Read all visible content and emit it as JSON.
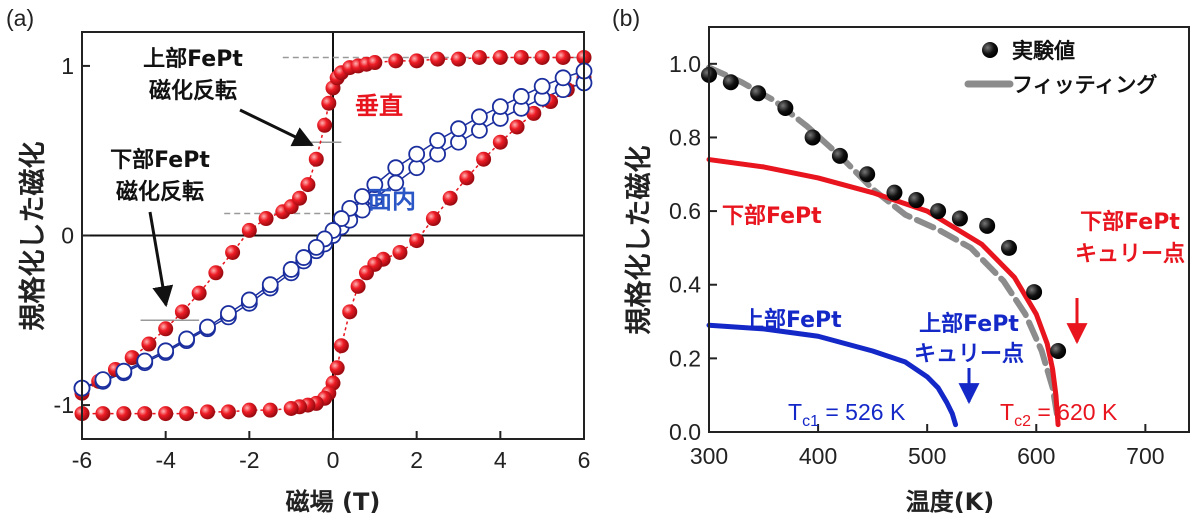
{
  "panels": {
    "a": {
      "panel_label": "(a)",
      "ylabel": "規格化した磁化",
      "xlabel": "磁場 (T)",
      "xticks": [
        "-6",
        "-4",
        "-2",
        "0",
        "2",
        "4",
        "6"
      ],
      "yticks": [
        "-1",
        "0",
        "1"
      ],
      "annotations": {
        "upper_line1": "上部FePt",
        "upper_line2": "磁化反転",
        "lower_line1": "下部FePt",
        "lower_line2": "磁化反転",
        "perp": "垂直",
        "inplane": "面内"
      }
    },
    "b": {
      "panel_label": "(b)",
      "ylabel": "規格化した磁化",
      "xlabel": "温度(K)",
      "xticks": [
        "300",
        "400",
        "500",
        "600",
        "700"
      ],
      "yticks": [
        "0.0",
        "0.2",
        "0.4",
        "0.6",
        "0.8",
        "1.0"
      ],
      "legend": {
        "experiment": "実験値",
        "fit": "フィッティング"
      },
      "annotations": {
        "lower_fept": "下部FePt",
        "upper_fept": "上部FePt",
        "lower_curie_1": "下部FePt",
        "lower_curie_2": "キュリー点",
        "upper_curie_1": "上部FePt",
        "upper_curie_2": "キュリー点",
        "tc1_T": "T",
        "tc1_sub": "c1",
        "tc1_val": " = 526 K",
        "tc2_T": "T",
        "tc2_sub": "c2",
        "tc2_val": " = 620 K"
      }
    }
  },
  "colors": {
    "red": "#e8141e",
    "blue": "#1428c8",
    "gray": "#8c8c8c",
    "black": "#111111"
  },
  "chart_data": [
    {
      "type": "scatter",
      "panel": "a",
      "xlim": [
        -6,
        6
      ],
      "ylim": [
        -1.2,
        1.2
      ],
      "series": [
        {
          "name": "垂直",
          "marker": "filled-circle",
          "x": [
            -6.0,
            -5.6,
            -5.2,
            -4.8,
            -4.4,
            -4.0,
            -3.6,
            -3.2,
            -2.8,
            -2.4,
            -2.0,
            -1.6,
            -1.2,
            -1.0,
            -0.8,
            -0.6,
            -0.4,
            -0.2,
            -0.1,
            0.0,
            0.1,
            0.2,
            0.4,
            0.6,
            0.8,
            1.0,
            1.5,
            2.0,
            2.5,
            3.0,
            3.5,
            4.0,
            4.5,
            5.0,
            5.5,
            6.0
          ],
          "y": [
            -0.93,
            -0.86,
            -0.79,
            -0.72,
            -0.64,
            -0.55,
            -0.45,
            -0.34,
            -0.22,
            -0.1,
            0.03,
            0.1,
            0.14,
            0.17,
            0.22,
            0.3,
            0.45,
            0.65,
            0.78,
            0.87,
            0.93,
            0.96,
            0.99,
            1.0,
            1.01,
            1.02,
            1.03,
            1.03,
            1.04,
            1.04,
            1.05,
            1.05,
            1.05,
            1.05,
            1.05,
            1.05
          ]
        },
        {
          "name": "垂直 (return branch)",
          "marker": "filled-circle",
          "x": [
            6.0,
            5.6,
            5.2,
            4.8,
            4.4,
            4.0,
            3.6,
            3.2,
            2.8,
            2.4,
            2.0,
            1.6,
            1.2,
            1.0,
            0.8,
            0.6,
            0.4,
            0.2,
            0.1,
            0.0,
            -0.1,
            -0.2,
            -0.4,
            -0.6,
            -0.8,
            -1.0,
            -1.5,
            -2.0,
            -2.5,
            -3.0,
            -3.5,
            -4.0,
            -4.5,
            -5.0,
            -5.5,
            -6.0
          ],
          "y": [
            0.93,
            0.86,
            0.79,
            0.72,
            0.64,
            0.55,
            0.45,
            0.34,
            0.22,
            0.1,
            -0.03,
            -0.1,
            -0.14,
            -0.17,
            -0.22,
            -0.3,
            -0.45,
            -0.65,
            -0.78,
            -0.87,
            -0.93,
            -0.96,
            -0.99,
            -1.0,
            -1.01,
            -1.02,
            -1.03,
            -1.03,
            -1.04,
            -1.04,
            -1.05,
            -1.05,
            -1.05,
            -1.05,
            -1.05,
            -1.05
          ]
        },
        {
          "name": "面内",
          "marker": "open-circle",
          "x": [
            -6.0,
            -5.5,
            -5.0,
            -4.5,
            -4.0,
            -3.5,
            -3.0,
            -2.5,
            -2.0,
            -1.5,
            -1.0,
            -0.7,
            -0.4,
            -0.2,
            0.0,
            0.2,
            0.4,
            0.7,
            1.0,
            1.5,
            2.0,
            2.5,
            3.0,
            3.5,
            4.0,
            4.5,
            5.0,
            5.5,
            6.0
          ],
          "y": [
            -0.9,
            -0.86,
            -0.81,
            -0.75,
            -0.69,
            -0.62,
            -0.55,
            -0.48,
            -0.4,
            -0.31,
            -0.22,
            -0.15,
            -0.09,
            -0.05,
            0.0,
            0.05,
            0.09,
            0.15,
            0.22,
            0.31,
            0.4,
            0.48,
            0.55,
            0.62,
            0.69,
            0.75,
            0.81,
            0.86,
            0.9
          ]
        },
        {
          "name": "面内 (return branch)",
          "marker": "open-circle",
          "x": [
            6.0,
            5.5,
            5.0,
            4.5,
            4.0,
            3.5,
            3.0,
            2.5,
            2.0,
            1.5,
            1.0,
            0.7,
            0.4,
            0.2,
            0.0,
            -0.2,
            -0.4,
            -0.7,
            -1.0,
            -1.5,
            -2.0,
            -2.5,
            -3.0,
            -3.5,
            -4.0,
            -4.5,
            -5.0,
            -5.5,
            -6.0
          ],
          "y": [
            0.97,
            0.93,
            0.88,
            0.82,
            0.76,
            0.7,
            0.63,
            0.56,
            0.48,
            0.4,
            0.3,
            0.23,
            0.16,
            0.1,
            0.03,
            -0.02,
            -0.07,
            -0.13,
            -0.2,
            -0.29,
            -0.38,
            -0.46,
            -0.54,
            -0.61,
            -0.68,
            -0.74,
            -0.8,
            -0.85,
            -0.9
          ]
        }
      ]
    },
    {
      "type": "scatter",
      "panel": "b",
      "xlim": [
        300,
        740
      ],
      "ylim": [
        0.0,
        1.1
      ],
      "series": [
        {
          "name": "実験値",
          "marker": "filled-circle",
          "x": [
            300,
            320,
            345,
            370,
            395,
            420,
            445,
            470,
            490,
            510,
            530,
            555,
            575,
            598,
            620
          ],
          "y": [
            0.97,
            0.95,
            0.92,
            0.88,
            0.8,
            0.75,
            0.7,
            0.65,
            0.63,
            0.6,
            0.58,
            0.56,
            0.5,
            0.38,
            0.22
          ]
        },
        {
          "name": "フィッティング",
          "line": "dashed",
          "x": [
            300,
            330,
            360,
            390,
            420,
            450,
            480,
            510,
            540,
            570,
            590,
            605,
            615,
            620
          ],
          "y": [
            0.99,
            0.95,
            0.9,
            0.83,
            0.75,
            0.66,
            0.59,
            0.55,
            0.5,
            0.41,
            0.32,
            0.22,
            0.12,
            0.03
          ]
        },
        {
          "name": "下部FePt",
          "line": "solid",
          "x": [
            300,
            350,
            400,
            450,
            500,
            550,
            580,
            600,
            610,
            615,
            618,
            620
          ],
          "y": [
            0.74,
            0.72,
            0.69,
            0.65,
            0.6,
            0.51,
            0.42,
            0.32,
            0.24,
            0.17,
            0.1,
            0.02
          ]
        },
        {
          "name": "上部FePt",
          "line": "solid",
          "x": [
            300,
            350,
            400,
            450,
            480,
            500,
            510,
            518,
            523,
            526
          ],
          "y": [
            0.29,
            0.28,
            0.26,
            0.22,
            0.19,
            0.15,
            0.12,
            0.08,
            0.05,
            0.02
          ]
        }
      ]
    }
  ]
}
